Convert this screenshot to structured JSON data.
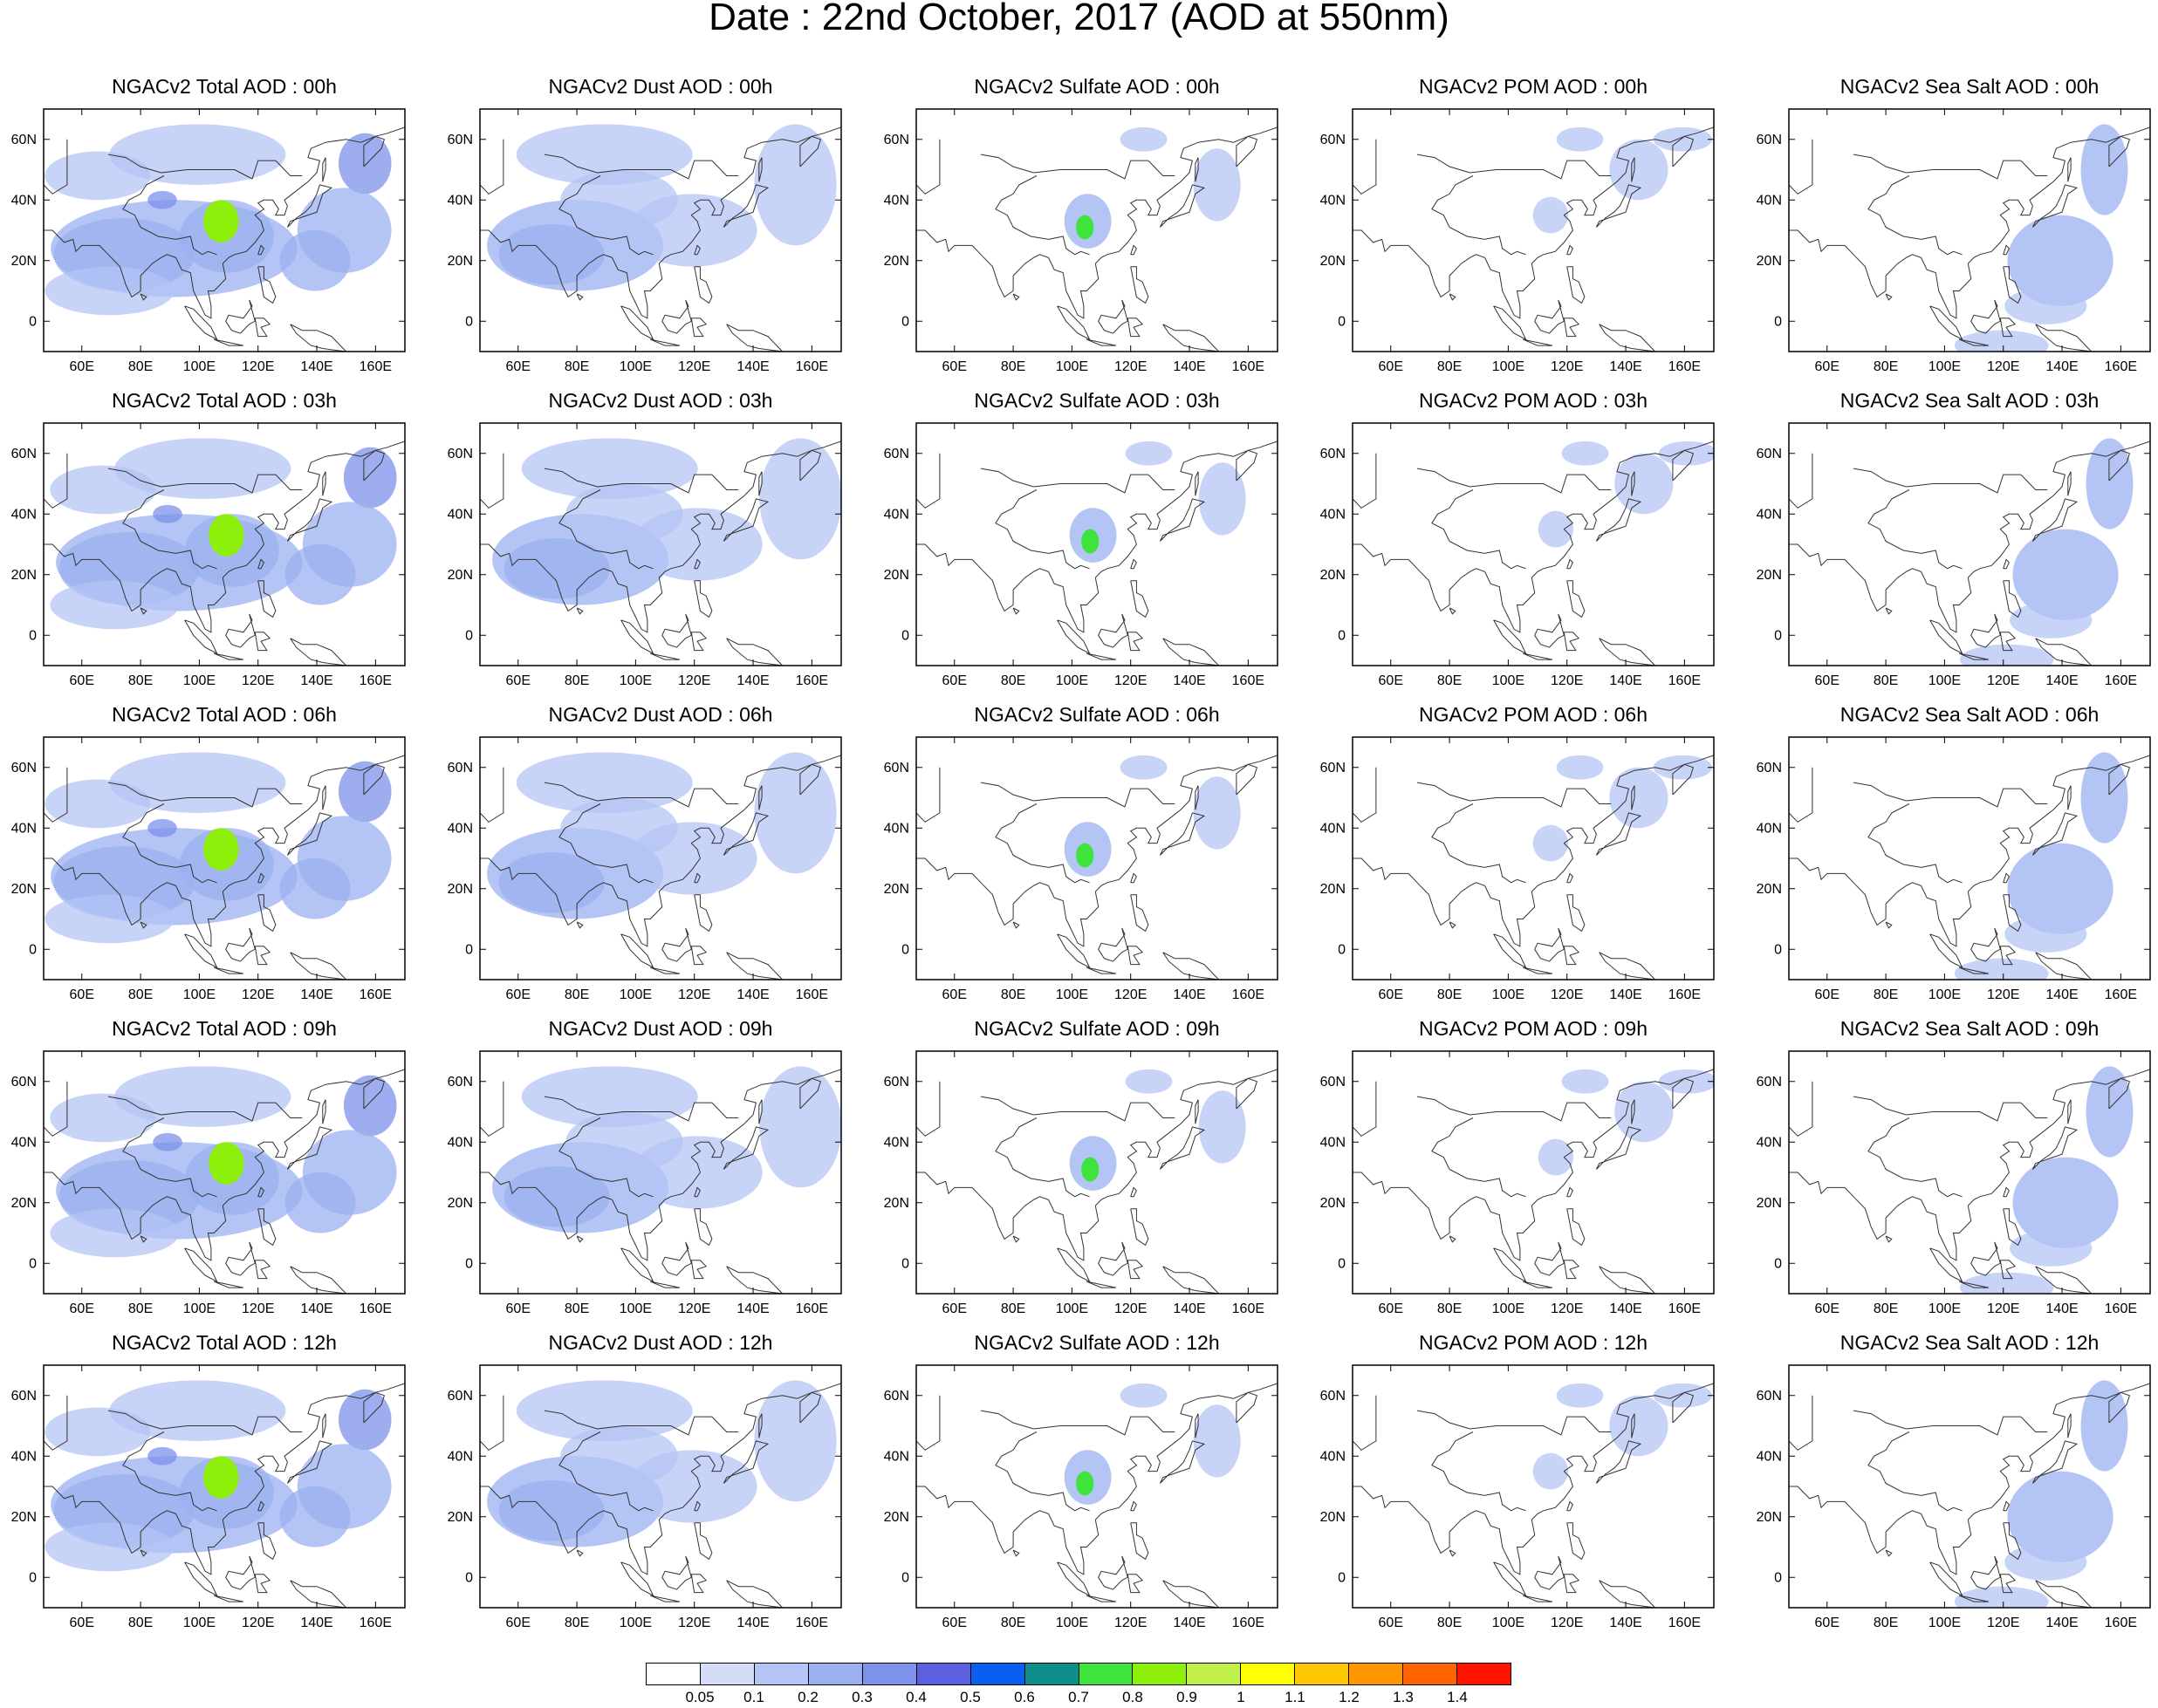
{
  "title": "Date : 22nd October, 2017 (AOD at 550nm)",
  "columns": [
    {
      "species": "total",
      "titles": [
        "NGACv2 Total AOD : 00h",
        "NGACv2 Total AOD : 03h",
        "NGACv2 Total AOD : 06h",
        "NGACv2 Total AOD : 09h",
        "NGACv2 Total AOD  : 12h"
      ]
    },
    {
      "species": "dust",
      "titles": [
        "NGACv2 Dust AOD : 00h",
        "NGACv2 Dust AOD : 03h",
        "NGACv2 Dust AOD : 06h",
        "NGACv2 Dust AOD : 09h",
        "NGACv2 Dust AOD : 12h"
      ]
    },
    {
      "species": "sulfate",
      "titles": [
        "NGACv2 Sulfate AOD : 00h",
        "NGACv2 Sulfate AOD : 03h",
        "NGACv2 Sulfate AOD : 06h",
        "NGACv2 Sulfate AOD : 09h",
        "NGACv2 Sulfate AOD : 12h"
      ]
    },
    {
      "species": "pom",
      "titles": [
        "NGACv2 POM AOD : 00h",
        "NGACv2 POM AOD : 03h",
        "NGACv2 POM AOD : 06h",
        "NGACv2 POM AOD : 09h",
        "NGACv2 POM  AOD : 12h"
      ]
    },
    {
      "species": "seasalt",
      "titles": [
        "NGACv2 Sea Salt AOD : 00h",
        "NGACv2 Sea Salt AOD : 03h",
        "NGACv2 Sea Salt AOD : 06h",
        "NGACv2 Sea Salt  AOD : 09h",
        "NGACv2 Sea Salt  AOD : 12h"
      ]
    }
  ],
  "axes": {
    "lon_range": [
      47,
      170
    ],
    "lat_range": [
      -10,
      70
    ],
    "lon_ticks": [
      60,
      80,
      100,
      120,
      140,
      160
    ],
    "lon_labels": [
      "60E",
      "80E",
      "100E",
      "120E",
      "140E",
      "160E"
    ],
    "lat_ticks": [
      0,
      20,
      40,
      60
    ],
    "lat_labels": [
      "0",
      "20N",
      "40N",
      "60N"
    ]
  },
  "colorbar": {
    "labels": [
      "0.05",
      "0.1",
      "0.2",
      "0.3",
      "0.4",
      "0.5",
      "0.6",
      "0.7",
      "0.8",
      "0.9",
      "1",
      "1.1",
      "1.2",
      "1.3",
      "1.4"
    ],
    "colors": [
      "#ffffff",
      "#d4dcf8",
      "#b4c4f4",
      "#9bb0f0",
      "#7e92eb",
      "#5a60e0",
      "#0a5ef0",
      "#0e8f8a",
      "#3ce43c",
      "#8ef00a",
      "#c2f04a",
      "#ffff00",
      "#ffc800",
      "#ff9600",
      "#ff6400",
      "#ff1400"
    ]
  }
}
